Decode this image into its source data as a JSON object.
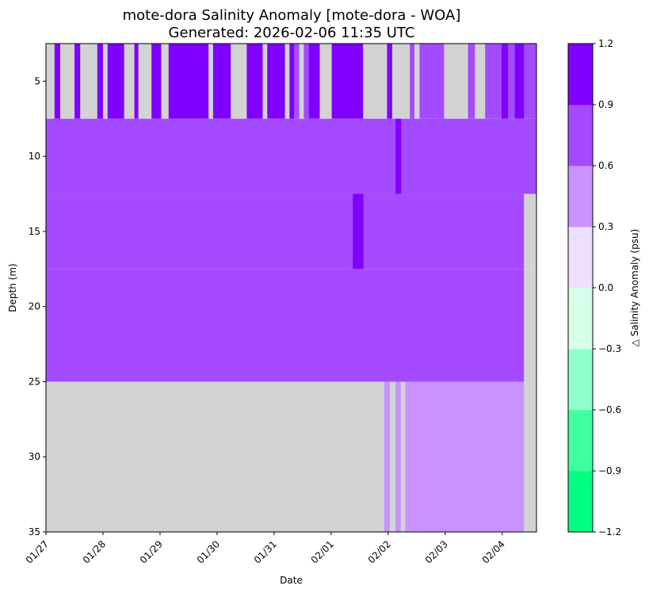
{
  "chart_data": {
    "type": "heatmap",
    "title": "mote-dora Salinity Anomaly [mote-dora - WOA]",
    "subtitle": "Generated: 2026-02-06 11:35 UTC",
    "xlabel": "Date",
    "ylabel": "Depth (m)",
    "colorbar_label": "△ Salinity Anomaly (psu)",
    "x_tick_labels": [
      "01/27",
      "01/28",
      "01/29",
      "01/30",
      "01/31",
      "02/01",
      "02/02",
      "02/03",
      "02/04"
    ],
    "x_range_days": [
      0.0,
      8.6
    ],
    "y_ticks": [
      5,
      10,
      15,
      20,
      25,
      30,
      35
    ],
    "ylim": [
      2.5,
      35
    ],
    "y_inverted": true,
    "depth_bins": [
      [
        2.5,
        7.5
      ],
      [
        7.5,
        12.5
      ],
      [
        12.5,
        17.5
      ],
      [
        17.5,
        25
      ],
      [
        25,
        35
      ]
    ],
    "colorbar": {
      "boundaries": [
        -1.2,
        -0.9,
        -0.6,
        -0.3,
        0.0,
        0.3,
        0.6,
        0.9,
        1.2
      ],
      "tick_labels": [
        "−1.2",
        "−0.9",
        "−0.6",
        "−0.3",
        "0.0",
        "0.3",
        "0.6",
        "0.9",
        "1.2"
      ],
      "colors": [
        "#00ff80",
        "#40ff9f",
        "#8fffcb",
        "#d5ffe9",
        "#eedfff",
        "#c993ff",
        "#a44bff",
        "#8000ff"
      ]
    },
    "missing_color": "#d3d3d3",
    "band_descriptions": {
      "surface_2.5_7.5m": "alternating missing and 0.9 to 1.2 psu columns; 0.6 to 0.9 psu from about 02/02 onward",
      "7.5_25m": "mostly 0.6 to 0.9 psu; short 0.9 to 1.2 psu columns near 02/01 12:00 and 02/02 04:00",
      "25_35m": "missing until about 02/01 22:00, then 0.3 to 0.6 psu"
    },
    "cells": [
      {
        "t0": 0.0,
        "t1": 0.15,
        "d0": 2.5,
        "d1": 7.5,
        "v": null
      },
      {
        "t0": 0.15,
        "t1": 0.25,
        "d0": 2.5,
        "d1": 7.5,
        "v": 1.05
      },
      {
        "t0": 0.25,
        "t1": 0.5,
        "d0": 2.5,
        "d1": 7.5,
        "v": null
      },
      {
        "t0": 0.5,
        "t1": 0.6,
        "d0": 2.5,
        "d1": 7.5,
        "v": 1.05
      },
      {
        "t0": 0.6,
        "t1": 0.9,
        "d0": 2.5,
        "d1": 7.5,
        "v": null
      },
      {
        "t0": 0.9,
        "t1": 1.0,
        "d0": 2.5,
        "d1": 7.5,
        "v": 1.05
      },
      {
        "t0": 1.0,
        "t1": 1.08,
        "d0": 2.5,
        "d1": 7.5,
        "v": null
      },
      {
        "t0": 1.08,
        "t1": 1.37,
        "d0": 2.5,
        "d1": 7.5,
        "v": 1.05
      },
      {
        "t0": 1.37,
        "t1": 1.55,
        "d0": 2.5,
        "d1": 7.5,
        "v": null
      },
      {
        "t0": 1.55,
        "t1": 1.62,
        "d0": 2.5,
        "d1": 7.5,
        "v": 1.05
      },
      {
        "t0": 1.62,
        "t1": 1.85,
        "d0": 2.5,
        "d1": 7.5,
        "v": null
      },
      {
        "t0": 1.85,
        "t1": 2.02,
        "d0": 2.5,
        "d1": 7.5,
        "v": 1.05
      },
      {
        "t0": 2.02,
        "t1": 2.15,
        "d0": 2.5,
        "d1": 7.5,
        "v": null
      },
      {
        "t0": 2.15,
        "t1": 2.85,
        "d0": 2.5,
        "d1": 7.5,
        "v": 1.05
      },
      {
        "t0": 2.85,
        "t1": 2.93,
        "d0": 2.5,
        "d1": 7.5,
        "v": null
      },
      {
        "t0": 2.93,
        "t1": 3.24,
        "d0": 2.5,
        "d1": 7.5,
        "v": 1.05
      },
      {
        "t0": 3.24,
        "t1": 3.52,
        "d0": 2.5,
        "d1": 7.5,
        "v": null
      },
      {
        "t0": 3.52,
        "t1": 3.8,
        "d0": 2.5,
        "d1": 7.5,
        "v": 1.05
      },
      {
        "t0": 3.8,
        "t1": 3.88,
        "d0": 2.5,
        "d1": 7.5,
        "v": null
      },
      {
        "t0": 3.88,
        "t1": 4.19,
        "d0": 2.5,
        "d1": 7.5,
        "v": 1.05
      },
      {
        "t0": 4.19,
        "t1": 4.27,
        "d0": 2.5,
        "d1": 7.5,
        "v": null
      },
      {
        "t0": 4.27,
        "t1": 4.35,
        "d0": 2.5,
        "d1": 7.5,
        "v": 1.05
      },
      {
        "t0": 4.35,
        "t1": 4.44,
        "d0": 2.5,
        "d1": 7.5,
        "v": 0.75
      },
      {
        "t0": 4.44,
        "t1": 4.52,
        "d0": 2.5,
        "d1": 7.5,
        "v": null
      },
      {
        "t0": 4.52,
        "t1": 4.61,
        "d0": 2.5,
        "d1": 7.5,
        "v": 0.75
      },
      {
        "t0": 4.61,
        "t1": 4.8,
        "d0": 2.5,
        "d1": 7.5,
        "v": 1.05
      },
      {
        "t0": 4.8,
        "t1": 5.01,
        "d0": 2.5,
        "d1": 7.5,
        "v": null
      },
      {
        "t0": 5.01,
        "t1": 5.56,
        "d0": 2.5,
        "d1": 7.5,
        "v": 1.05
      },
      {
        "t0": 5.56,
        "t1": 5.98,
        "d0": 2.5,
        "d1": 7.5,
        "v": null
      },
      {
        "t0": 5.98,
        "t1": 6.07,
        "d0": 2.5,
        "d1": 7.5,
        "v": 1.05
      },
      {
        "t0": 6.07,
        "t1": 6.38,
        "d0": 2.5,
        "d1": 7.5,
        "v": null
      },
      {
        "t0": 6.38,
        "t1": 6.46,
        "d0": 2.5,
        "d1": 7.5,
        "v": 0.75
      },
      {
        "t0": 6.46,
        "t1": 6.55,
        "d0": 2.5,
        "d1": 7.5,
        "v": null
      },
      {
        "t0": 6.55,
        "t1": 6.98,
        "d0": 2.5,
        "d1": 7.5,
        "v": 0.75
      },
      {
        "t0": 6.98,
        "t1": 7.4,
        "d0": 2.5,
        "d1": 7.5,
        "v": null
      },
      {
        "t0": 7.4,
        "t1": 7.52,
        "d0": 2.5,
        "d1": 7.5,
        "v": 0.75
      },
      {
        "t0": 7.52,
        "t1": 7.7,
        "d0": 2.5,
        "d1": 7.5,
        "v": null
      },
      {
        "t0": 7.7,
        "t1": 7.99,
        "d0": 2.5,
        "d1": 7.5,
        "v": 0.75
      },
      {
        "t0": 7.99,
        "t1": 8.1,
        "d0": 2.5,
        "d1": 7.5,
        "v": 1.05
      },
      {
        "t0": 8.1,
        "t1": 8.22,
        "d0": 2.5,
        "d1": 7.5,
        "v": 0.75
      },
      {
        "t0": 8.22,
        "t1": 8.38,
        "d0": 2.5,
        "d1": 7.5,
        "v": 1.05
      },
      {
        "t0": 8.38,
        "t1": 8.6,
        "d0": 2.5,
        "d1": 7.5,
        "v": 0.75
      },
      {
        "t0": 0.0,
        "t1": 8.6,
        "d0": 7.5,
        "d1": 12.5,
        "v": 0.75
      },
      {
        "t0": 6.13,
        "t1": 6.22,
        "d0": 7.5,
        "d1": 12.5,
        "v": 1.05
      },
      {
        "t0": 0.0,
        "t1": 8.38,
        "d0": 12.5,
        "d1": 17.5,
        "v": 0.75
      },
      {
        "t0": 5.38,
        "t1": 5.56,
        "d0": 12.5,
        "d1": 17.5,
        "v": 1.05
      },
      {
        "t0": 8.38,
        "t1": 8.6,
        "d0": 12.5,
        "d1": 17.5,
        "v": null
      },
      {
        "t0": 0.0,
        "t1": 8.38,
        "d0": 17.5,
        "d1": 25,
        "v": 0.75
      },
      {
        "t0": 8.38,
        "t1": 8.6,
        "d0": 17.5,
        "d1": 25,
        "v": null
      },
      {
        "t0": 0.0,
        "t1": 5.93,
        "d0": 25,
        "d1": 35,
        "v": null
      },
      {
        "t0": 5.93,
        "t1": 6.03,
        "d0": 25,
        "d1": 35,
        "v": 0.45
      },
      {
        "t0": 6.03,
        "t1": 6.13,
        "d0": 25,
        "d1": 35,
        "v": null
      },
      {
        "t0": 6.13,
        "t1": 6.22,
        "d0": 25,
        "d1": 35,
        "v": 0.45
      },
      {
        "t0": 6.22,
        "t1": 6.3,
        "d0": 25,
        "d1": 35,
        "v": null
      },
      {
        "t0": 6.3,
        "t1": 8.38,
        "d0": 25,
        "d1": 35,
        "v": 0.45
      },
      {
        "t0": 8.38,
        "t1": 8.6,
        "d0": 25,
        "d1": 35,
        "v": null
      }
    ]
  }
}
